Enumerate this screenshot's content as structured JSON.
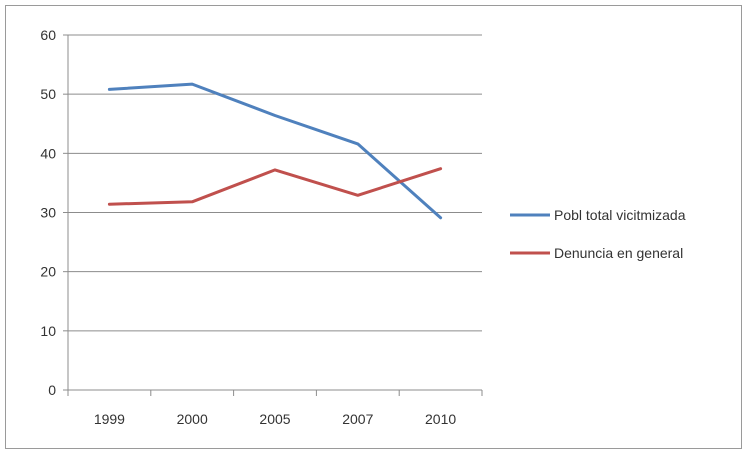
{
  "chart_data": {
    "type": "line",
    "categories": [
      "1999",
      "2000",
      "2005",
      "2007",
      "2010"
    ],
    "series": [
      {
        "name": "Pobl total vicitmizada",
        "values": [
          50.8,
          51.7,
          46.4,
          41.6,
          29.1
        ],
        "color": "#4f81bd"
      },
      {
        "name": "Denuncia en general",
        "values": [
          31.4,
          31.8,
          37.2,
          32.9,
          37.4
        ],
        "color": "#c0504d"
      }
    ],
    "ylim": [
      0,
      60
    ],
    "yticks": [
      0,
      10,
      20,
      30,
      40,
      50,
      60
    ],
    "grid": true,
    "legend_position": "right"
  }
}
